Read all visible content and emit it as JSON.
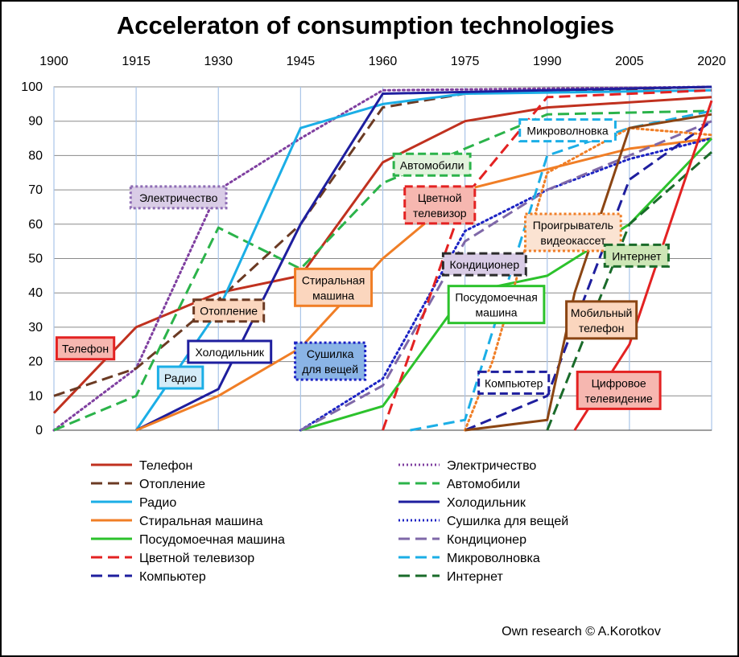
{
  "credit": "Own research © A.Korotkov",
  "chart_data": {
    "type": "line",
    "title": "Acceleraton of consumption technologies",
    "xlabel": "",
    "ylabel": "",
    "xlim": [
      1900,
      2020
    ],
    "ylim": [
      0,
      100
    ],
    "x_ticks": [
      1900,
      1915,
      1930,
      1945,
      1960,
      1975,
      1990,
      2005,
      2020
    ],
    "y_ticks": [
      0,
      10,
      20,
      30,
      40,
      50,
      60,
      70,
      80,
      90,
      100
    ],
    "grid": true,
    "legend_position": "bottom",
    "series": [
      {
        "name": "Телефон",
        "color": "#C0311F",
        "dash": "solid",
        "points": [
          [
            1900,
            5
          ],
          [
            1915,
            30
          ],
          [
            1930,
            40
          ],
          [
            1945,
            45
          ],
          [
            1960,
            78
          ],
          [
            1975,
            90
          ],
          [
            1990,
            94
          ],
          [
            2020,
            97
          ]
        ]
      },
      {
        "name": "Электричество",
        "color": "#7F3FA0",
        "dash": "dot",
        "points": [
          [
            1900,
            0
          ],
          [
            1915,
            18
          ],
          [
            1930,
            70
          ],
          [
            1945,
            85
          ],
          [
            1960,
            99
          ],
          [
            2020,
            100
          ]
        ]
      },
      {
        "name": "Отопление",
        "color": "#6B3A23",
        "dash": "dash",
        "points": [
          [
            1900,
            10
          ],
          [
            1915,
            18
          ],
          [
            1930,
            38
          ],
          [
            1945,
            60
          ],
          [
            1960,
            94
          ],
          [
            1975,
            98
          ],
          [
            2020,
            100
          ]
        ]
      },
      {
        "name": "Автомобили",
        "color": "#2BB34A",
        "dash": "dash",
        "points": [
          [
            1900,
            0
          ],
          [
            1915,
            10
          ],
          [
            1930,
            59
          ],
          [
            1945,
            47
          ],
          [
            1960,
            72
          ],
          [
            1975,
            82
          ],
          [
            1990,
            92
          ],
          [
            2020,
            93
          ]
        ]
      },
      {
        "name": "Радио",
        "color": "#1BAEE6",
        "dash": "solid",
        "points": [
          [
            1915,
            0
          ],
          [
            1930,
            35
          ],
          [
            1945,
            88
          ],
          [
            1960,
            95
          ],
          [
            1975,
            98
          ],
          [
            2020,
            99
          ]
        ]
      },
      {
        "name": "Холодильник",
        "color": "#1E1E9E",
        "dash": "solid",
        "points": [
          [
            1915,
            0
          ],
          [
            1930,
            12
          ],
          [
            1945,
            60
          ],
          [
            1960,
            98
          ],
          [
            2020,
            100
          ]
        ]
      },
      {
        "name": "Стиральная машина",
        "color": "#F07E26",
        "dash": "solid",
        "points": [
          [
            1915,
            0
          ],
          [
            1930,
            10
          ],
          [
            1945,
            24
          ],
          [
            1960,
            50
          ],
          [
            1975,
            70
          ],
          [
            2005,
            82
          ],
          [
            2020,
            85
          ]
        ]
      },
      {
        "name": "Сушилка для вещей",
        "color": "#1C23C4",
        "dash": "dot",
        "points": [
          [
            1945,
            0
          ],
          [
            1960,
            15
          ],
          [
            1975,
            58
          ],
          [
            1990,
            70
          ],
          [
            2005,
            79
          ],
          [
            2020,
            85
          ]
        ]
      },
      {
        "name": "Посудомоечная машина",
        "color": "#2CC22C",
        "dash": "solid",
        "points": [
          [
            1945,
            0
          ],
          [
            1960,
            7
          ],
          [
            1975,
            40
          ],
          [
            1990,
            45
          ],
          [
            2005,
            60
          ],
          [
            2020,
            85
          ]
        ]
      },
      {
        "name": "Кондиционер",
        "color": "#7F68A8",
        "dash": "dash",
        "points": [
          [
            1945,
            0
          ],
          [
            1960,
            13
          ],
          [
            1975,
            55
          ],
          [
            1990,
            70
          ],
          [
            2005,
            80
          ],
          [
            2020,
            90
          ]
        ]
      },
      {
        "name": "Цветной телевизор",
        "color": "#E32222",
        "dash": "dash",
        "points": [
          [
            1960,
            0
          ],
          [
            1975,
            68
          ],
          [
            1990,
            97
          ],
          [
            2020,
            99
          ]
        ]
      },
      {
        "name": "Микроволновка",
        "color": "#1BAEE6",
        "dash": "dash",
        "points": [
          [
            1965,
            0
          ],
          [
            1975,
            3
          ],
          [
            1990,
            80
          ],
          [
            2005,
            88
          ],
          [
            2020,
            93
          ]
        ]
      },
      {
        "name": "Компьютер",
        "color": "#1E1E9E",
        "dash": "dash",
        "points": [
          [
            1975,
            0
          ],
          [
            1990,
            10
          ],
          [
            2005,
            73
          ],
          [
            2020,
            90
          ]
        ]
      },
      {
        "name": "Интернет",
        "color": "#1A6B2A",
        "dash": "dash",
        "points": [
          [
            1990,
            0
          ],
          [
            2005,
            60
          ],
          [
            2020,
            81
          ]
        ]
      },
      {
        "name": "Проигрыватель видеокассет",
        "color": "#F07E26",
        "dash": "dot",
        "legend": false,
        "points": [
          [
            1975,
            0
          ],
          [
            1980,
            20
          ],
          [
            1990,
            75
          ],
          [
            2005,
            88
          ],
          [
            2020,
            86
          ]
        ]
      },
      {
        "name": "Мобильный телефон",
        "color": "#8B4513",
        "dash": "solid",
        "legend": false,
        "points": [
          [
            1975,
            0
          ],
          [
            1990,
            3
          ],
          [
            1995,
            40
          ],
          [
            2005,
            88
          ],
          [
            2020,
            92
          ]
        ]
      },
      {
        "name": "Цифровое телевидение",
        "color": "#E32222",
        "dash": "solid",
        "legend": false,
        "points": [
          [
            1995,
            0
          ],
          [
            2005,
            25
          ],
          [
            2020,
            96
          ]
        ]
      }
    ],
    "annotations": [
      {
        "id": "phone",
        "lines": [
          "Телефон"
        ],
        "fill": "#F6B7B0",
        "stroke": "#E32222",
        "dash": "solid",
        "x": 1900.5,
        "y": 27
      },
      {
        "id": "electricity",
        "lines": [
          "Электричество"
        ],
        "fill": "#D9CCE6",
        "stroke": "#8E6CB4",
        "dash": "dot",
        "x": 1914,
        "y": 71
      },
      {
        "id": "heating",
        "lines": [
          "Отопление"
        ],
        "fill": "#FBD6BE",
        "stroke": "#6B3A23",
        "dash": "dash",
        "x": 1925.5,
        "y": 38
      },
      {
        "id": "radio",
        "lines": [
          "Радио"
        ],
        "fill": "#D4ECF8",
        "stroke": "#1BAEE6",
        "dash": "solid",
        "x": 1919,
        "y": 18.5
      },
      {
        "id": "fridge",
        "lines": [
          "Холодильник"
        ],
        "fill": "#FFFFFF",
        "stroke": "#1E1E9E",
        "dash": "solid",
        "x": 1924.5,
        "y": 26
      },
      {
        "id": "washer",
        "lines": [
          "Стиральная",
          "машина"
        ],
        "fill": "#FBD6BE",
        "stroke": "#F07E26",
        "dash": "solid",
        "x": 1944,
        "y": 47
      },
      {
        "id": "dryer",
        "lines": [
          "Сушилка",
          "для вещей"
        ],
        "fill": "#8AB4E6",
        "stroke": "#1C23C4",
        "dash": "dot",
        "x": 1944,
        "y": 25.5
      },
      {
        "id": "cars",
        "lines": [
          "Автомобили"
        ],
        "fill": "#E3F3DE",
        "stroke": "#2BB34A",
        "dash": "dash",
        "x": 1962,
        "y": 80.5
      },
      {
        "id": "color_tv",
        "lines": [
          "Цветной",
          "телевизор"
        ],
        "fill": "#F6B7B0",
        "stroke": "#E32222",
        "dash": "dash",
        "x": 1964,
        "y": 71
      },
      {
        "id": "ac",
        "lines": [
          "Кондиционер"
        ],
        "fill": "#D9CCE6",
        "stroke": "#2B2B2B",
        "dash": "dash",
        "x": 1971,
        "y": 51.5
      },
      {
        "id": "dishwasher",
        "lines": [
          "Посудомоечная",
          "машина"
        ],
        "fill": "#FFFFFF",
        "stroke": "#2CC22C",
        "dash": "solid",
        "x": 1972,
        "y": 42
      },
      {
        "id": "microwave",
        "lines": [
          "Микроволновка"
        ],
        "fill": "#FFFFFF",
        "stroke": "#1BAEE6",
        "dash": "dash",
        "x": 1985,
        "y": 90.5
      },
      {
        "id": "vcr",
        "lines": [
          "Проигрыватель",
          "видеокассет"
        ],
        "fill": "#FBE3D2",
        "stroke": "#F07E26",
        "dash": "dot",
        "x": 1986,
        "y": 63
      },
      {
        "id": "computer",
        "lines": [
          "Компьютер"
        ],
        "fill": "#FFFFFF",
        "stroke": "#1E1E9E",
        "dash": "dash",
        "x": 1977.5,
        "y": 17
      },
      {
        "id": "internet",
        "lines": [
          "Интернет"
        ],
        "fill": "#CDE6B6",
        "stroke": "#1A6B2A",
        "dash": "dash",
        "x": 2000.5,
        "y": 54
      },
      {
        "id": "mobile",
        "lines": [
          "Мобильный",
          "телефон"
        ],
        "fill": "#FBD6BE",
        "stroke": "#8B4513",
        "dash": "solid",
        "x": 1993.5,
        "y": 37.5
      },
      {
        "id": "digital_tv",
        "lines": [
          "Цифровое",
          "телевидение"
        ],
        "fill": "#F6B7B0",
        "stroke": "#E32222",
        "dash": "solid",
        "x": 1995.5,
        "y": 17
      }
    ]
  }
}
